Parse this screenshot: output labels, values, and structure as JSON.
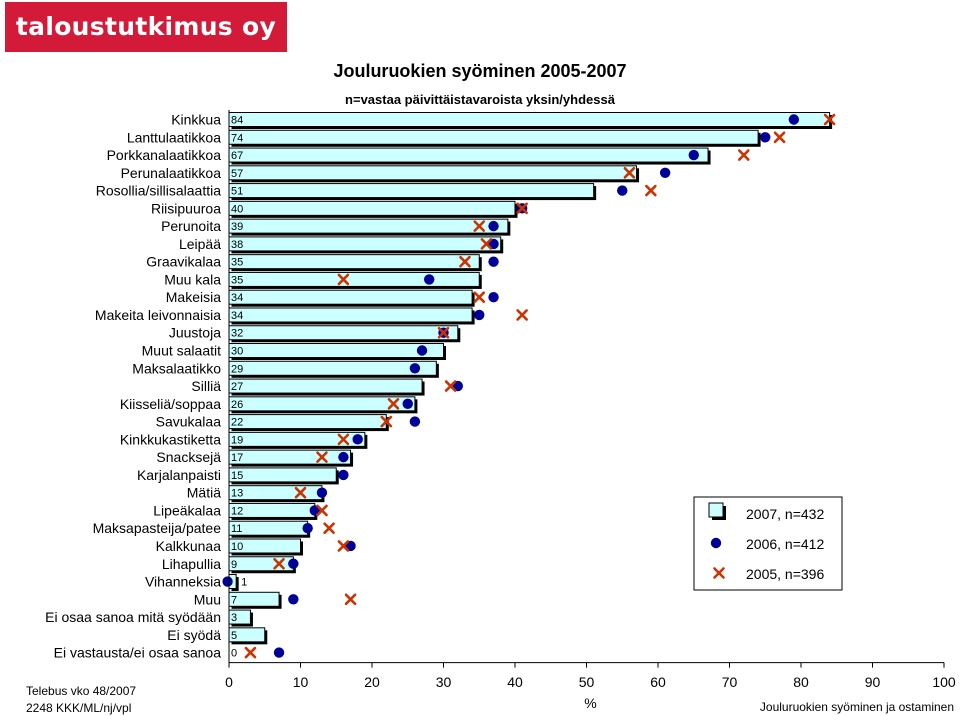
{
  "logo": {
    "text": "taloustutkimus oy"
  },
  "footer": {
    "left_line1": "Telebus vko 48/2007",
    "left_line2": "2248 KKK/ML/nj/vpl",
    "right": "Jouluruokien syöminen ja ostaminen"
  },
  "colors": {
    "brand_red": "#d31a38",
    "bar_fill": "#ccffff",
    "dot_2006": "#000099",
    "cross_2005": "#cc3300"
  },
  "chart_data": {
    "type": "bar",
    "orientation": "horizontal",
    "title": "Jouluruokien syöminen 2005-2007",
    "subtitle": "n=vastaa päivittäistavaroista yksin/yhdessä",
    "xlabel": "%",
    "xlim": [
      0,
      100
    ],
    "x_ticks": [
      0,
      10,
      20,
      30,
      40,
      50,
      60,
      70,
      80,
      90,
      100
    ],
    "grid": false,
    "legend_position": "right",
    "categories": [
      "Kinkkua",
      "Lanttulaatikkoa",
      "Porkkanalaatikkoa",
      "Perunalaatikkoa",
      "Rosollia/sillisalaattia",
      "Riisipuuroa",
      "Perunoita",
      "Leipää",
      "Graavikalaa",
      "Muu kala",
      "Makeisia",
      "Makeita leivonnaisia",
      "Juustoja",
      "Muut salaatit",
      "Maksalaatikko",
      "Silliä",
      "Kiisseliä/soppaa",
      "Savukalaa",
      "Kinkkukastiketta",
      "Snacksejä",
      "Karjalanpaisti",
      "Mätiä",
      "Lipeäkalaa",
      "Maksapasteija/patee",
      "Kalkkunaa",
      "Lihapullia",
      "Vihanneksia",
      "Muu",
      "Ei osaa sanoa mitä syödään",
      "Ei syödä",
      "Ei vastausta/ei osaa sanoa"
    ],
    "series": [
      {
        "name": "2007, n=432",
        "marker": "bar",
        "values": [
          84,
          74,
          67,
          57,
          51,
          40,
          39,
          38,
          35,
          35,
          34,
          34,
          32,
          30,
          29,
          27,
          26,
          22,
          19,
          17,
          15,
          13,
          12,
          11,
          10,
          9,
          1,
          7,
          3,
          5,
          0
        ]
      },
      {
        "name": "2006, n=412",
        "marker": "dot",
        "values": [
          79,
          75,
          65,
          61,
          55,
          41,
          37,
          37,
          37,
          28,
          37,
          35,
          30,
          27,
          26,
          32,
          25,
          26,
          18,
          16,
          16,
          13,
          12,
          11,
          17,
          9,
          -0.2,
          9,
          null,
          null,
          7
        ]
      },
      {
        "name": "2005, n=396",
        "marker": "cross",
        "values": [
          84,
          77,
          72,
          56,
          59,
          41,
          35,
          36,
          33,
          16,
          35,
          41,
          30,
          null,
          null,
          31,
          23,
          22,
          16,
          13,
          null,
          10,
          13,
          14,
          16,
          7,
          null,
          17,
          null,
          null,
          3
        ]
      }
    ]
  }
}
